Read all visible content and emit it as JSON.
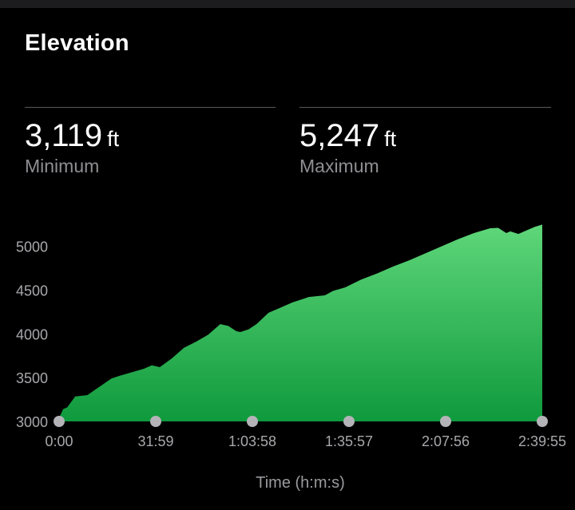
{
  "header": {
    "title": "Elevation"
  },
  "stats": {
    "minimum": {
      "value": "3,119",
      "unit": "ft",
      "label": "Minimum"
    },
    "maximum": {
      "value": "5,247",
      "unit": "ft",
      "label": "Maximum"
    }
  },
  "chart_data": {
    "type": "area",
    "xlabel": "Time (h:m:s)",
    "ylabel": "",
    "x_unit": "seconds",
    "ylim": [
      3000,
      5200
    ],
    "xlim": [
      0,
      9595
    ],
    "yticks": [
      3000,
      3500,
      4000,
      4500,
      5000
    ],
    "xticks": [
      {
        "value": 0,
        "label": "0:00"
      },
      {
        "value": 1919,
        "label": "31:59"
      },
      {
        "value": 3838,
        "label": "1:03:58"
      },
      {
        "value": 5757,
        "label": "1:35:57"
      },
      {
        "value": 7676,
        "label": "2:07:56"
      },
      {
        "value": 9595,
        "label": "2:39:55"
      }
    ],
    "color_top": "#5fd67a",
    "color_bottom": "#0f9a3d",
    "series": [
      {
        "x": [
          0,
          80,
          160,
          320,
          560,
          800,
          1040,
          1200,
          1440,
          1680,
          1840,
          2000,
          2240,
          2480,
          2720,
          2960,
          3200,
          3360,
          3520,
          3600,
          3760,
          3920,
          4160,
          4400,
          4640,
          4960,
          5280,
          5440,
          5680,
          6000,
          6320,
          6640,
          6960,
          7280,
          7600,
          7920,
          8240,
          8560,
          8720,
          8800,
          8880,
          8960,
          9120,
          9280,
          9440,
          9595
        ],
        "y": [
          3040,
          3140,
          3160,
          3285,
          3300,
          3395,
          3490,
          3520,
          3560,
          3600,
          3640,
          3620,
          3720,
          3840,
          3910,
          3990,
          4110,
          4090,
          4030,
          4020,
          4050,
          4110,
          4240,
          4300,
          4360,
          4420,
          4440,
          4490,
          4530,
          4620,
          4690,
          4770,
          4840,
          4920,
          5000,
          5080,
          5150,
          5205,
          5210,
          5180,
          5150,
          5170,
          5140,
          5180,
          5220,
          5247
        ]
      }
    ]
  }
}
